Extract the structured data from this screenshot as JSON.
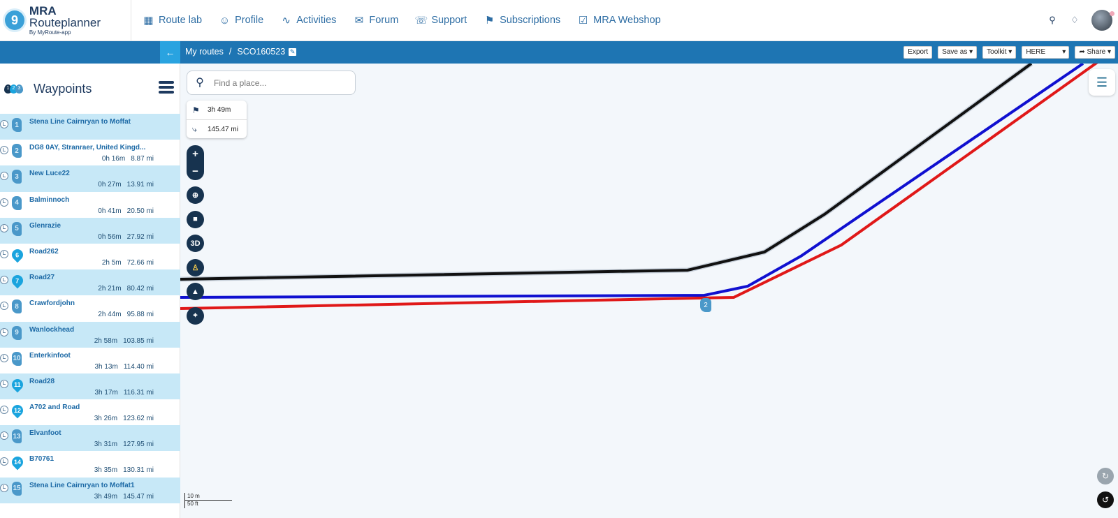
{
  "app": {
    "logo_title_bold": "MRA",
    "logo_title_rest": " Routeplanner",
    "logo_sub": "By MyRoute-app"
  },
  "nav": {
    "items": [
      {
        "label": "Route lab",
        "icon": "route-lab-icon"
      },
      {
        "label": "Profile",
        "icon": "user-icon"
      },
      {
        "label": "Activities",
        "icon": "activity-icon"
      },
      {
        "label": "Forum",
        "icon": "chat-icon"
      },
      {
        "label": "Support",
        "icon": "headset-icon"
      },
      {
        "label": "Subscriptions",
        "icon": "tag-icon"
      },
      {
        "label": "MRA Webshop",
        "icon": "bag-icon"
      }
    ]
  },
  "breadcrumb": {
    "root": "My routes",
    "separator": "/",
    "route_name": "SCO160523"
  },
  "toolbar": {
    "export": "Export",
    "save_as": "Save as",
    "toolkit": "Toolkit",
    "provider": "HERE",
    "share": "Share"
  },
  "sidebar": {
    "title": "Waypoints",
    "waypoints": [
      {
        "num": "1",
        "name": "Stena Line Cairnryan to Moffat",
        "time": "",
        "dist": "",
        "marker": "hand",
        "shaded": true
      },
      {
        "num": "2",
        "name": "DG8 0AY, Stranraer, United Kingd...",
        "time": "0h 16m",
        "dist": "8.87 mi",
        "marker": "hand",
        "shaded": false
      },
      {
        "num": "3",
        "name": "New Luce22",
        "time": "0h 27m",
        "dist": "13.91 mi",
        "marker": "hand",
        "shaded": true
      },
      {
        "num": "4",
        "name": "Balminnoch",
        "time": "0h 41m",
        "dist": "20.50 mi",
        "marker": "hand",
        "shaded": false
      },
      {
        "num": "5",
        "name": "Glenrazie",
        "time": "0h 56m",
        "dist": "27.92 mi",
        "marker": "hand",
        "shaded": true
      },
      {
        "num": "6",
        "name": "Road262",
        "time": "2h 5m",
        "dist": "72.66 mi",
        "marker": "pin",
        "shaded": false
      },
      {
        "num": "7",
        "name": "Road27",
        "time": "2h 21m",
        "dist": "80.42 mi",
        "marker": "pin",
        "shaded": true
      },
      {
        "num": "8",
        "name": "Crawfordjohn",
        "time": "2h 44m",
        "dist": "95.88 mi",
        "marker": "hand",
        "shaded": false
      },
      {
        "num": "9",
        "name": "Wanlockhead",
        "time": "2h 58m",
        "dist": "103.85 mi",
        "marker": "hand",
        "shaded": true
      },
      {
        "num": "10",
        "name": "Enterkinfoot",
        "time": "3h 13m",
        "dist": "114.40 mi",
        "marker": "hand",
        "shaded": false
      },
      {
        "num": "11",
        "name": "Road28",
        "time": "3h 17m",
        "dist": "116.31 mi",
        "marker": "pin",
        "shaded": true
      },
      {
        "num": "12",
        "name": "A702 and Road",
        "time": "3h 26m",
        "dist": "123.62 mi",
        "marker": "pin",
        "shaded": false
      },
      {
        "num": "13",
        "name": "Elvanfoot",
        "time": "3h 31m",
        "dist": "127.95 mi",
        "marker": "hand",
        "shaded": true
      },
      {
        "num": "14",
        "name": "B70761",
        "time": "3h 35m",
        "dist": "130.31 mi",
        "marker": "pin",
        "shaded": false
      },
      {
        "num": "15",
        "name": "Stena Line Cairnryan to Moffat1",
        "time": "3h 49m",
        "dist": "145.47 mi",
        "marker": "hand",
        "shaded": true
      }
    ]
  },
  "map": {
    "search_placeholder": "Find a place...",
    "total_time": "3h 49m",
    "total_distance": "145.47 mi",
    "zoom_in": "+",
    "zoom_out": "−",
    "btn_3d": "3D",
    "map_waypoint_label": "2",
    "scale_top": "10 m",
    "scale_bottom": "50 ft",
    "route_colors": {
      "black": "#111111",
      "blue": "#1010d0",
      "red": "#e01818"
    }
  }
}
